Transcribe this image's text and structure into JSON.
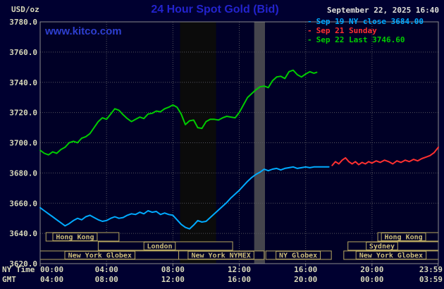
{
  "header": {
    "unit_label": "USD/oz",
    "title": "24 Hour Spot Gold (Bid)",
    "datetime": "September 22, 2025 16:40",
    "site_link": "www.kitco.com"
  },
  "ui": {
    "legend_dash": "-"
  },
  "legend": [
    {
      "label": "Sep 19 NY close 3684.00",
      "color": "#00AAFF"
    },
    {
      "label": "Sep 21 Sunday",
      "color": "#FF3030"
    },
    {
      "label": "Sep 22 Last 3746.60",
      "color": "#00CC00"
    }
  ],
  "axes": {
    "y_ticks": [
      "3780.0",
      "3760.0",
      "3740.0",
      "3720.0",
      "3700.0",
      "3680.0",
      "3660.0",
      "3640.0",
      "3620.0"
    ],
    "x_rows": [
      {
        "label": "NY Time",
        "ticks": [
          "00:00",
          "04:00",
          "08:00",
          "12:00",
          "16:00",
          "20:00",
          "23:59"
        ]
      },
      {
        "label": "GMT",
        "ticks": [
          "04:00",
          "08:00",
          "12:00",
          "16:00",
          "20:00",
          "00:00",
          "03:59"
        ]
      }
    ]
  },
  "sessions": {
    "rows": [
      [
        {
          "label": "Hong Kong",
          "start": 0.35,
          "end": 4.75,
          "label_center": 2.1
        },
        {
          "label": "Hong Kong",
          "start": 20.35,
          "end": 24,
          "label_center": 21.9
        }
      ],
      [
        {
          "label": "London",
          "start": 3.5,
          "end": 11.6,
          "label_center": 7.2
        },
        {
          "label": "Sydney",
          "start": 18.55,
          "end": 24,
          "label_center": 20.6
        }
      ],
      [
        {
          "label": "New York Globex",
          "start": 0,
          "end": 8.35,
          "label_center": 3.6
        },
        {
          "label": "New York NYMEX",
          "start": 8.35,
          "end": 13.5,
          "label_center": 10.9
        },
        {
          "label": "NY Globex",
          "start": 13.6,
          "end": 17.55,
          "label_center": 15.55
        },
        {
          "label": "New York Globex",
          "start": 18.3,
          "end": 24,
          "label_center": 21.15
        }
      ]
    ]
  },
  "colors": {
    "background": "#000030",
    "plot_background": "#000026",
    "grid": "#55555E",
    "border": "#8A8A8A",
    "axis_text": "#D8D8B8",
    "title": "#2323CD",
    "link": "#2E3FD0",
    "datetime_text": "#E0E0D8",
    "session_border": "#B8A860",
    "session_text": "#CCBC78"
  },
  "chart_data": {
    "type": "line",
    "title": "24 Hour Spot Gold (Bid)",
    "xlabel": "Time (NY Time / GMT)",
    "ylabel": "USD/oz",
    "ylim": [
      3620,
      3780
    ],
    "xlim_hours": [
      0,
      24
    ],
    "grid": true,
    "legend_position": "top-right",
    "y_gridlines": [
      3640,
      3660,
      3680,
      3700,
      3720,
      3740,
      3760
    ],
    "x_gridlines_hours": [
      0,
      4,
      8,
      12,
      16,
      20,
      23.983
    ],
    "bands": [
      {
        "from_hour": 8.43,
        "to_hour": 10.6,
        "color": "#0B0B0B"
      },
      {
        "from_hour": 12.9,
        "to_hour": 13.55,
        "color": "#45454D"
      }
    ],
    "series": [
      {
        "name": "Sep 19 NY close 3684.00",
        "color": "#00AAFF",
        "points": [
          [
            0,
            3657
          ],
          [
            0.25,
            3655
          ],
          [
            0.5,
            3653
          ],
          [
            0.75,
            3651
          ],
          [
            1,
            3649
          ],
          [
            1.25,
            3647
          ],
          [
            1.5,
            3645
          ],
          [
            1.75,
            3646.5
          ],
          [
            2,
            3648.5
          ],
          [
            2.25,
            3650
          ],
          [
            2.5,
            3649
          ],
          [
            2.75,
            3651
          ],
          [
            3,
            3652
          ],
          [
            3.25,
            3650.5
          ],
          [
            3.5,
            3649
          ],
          [
            3.75,
            3648
          ],
          [
            4,
            3648.5
          ],
          [
            4.25,
            3650
          ],
          [
            4.5,
            3651
          ],
          [
            4.75,
            3650
          ],
          [
            5,
            3650.5
          ],
          [
            5.25,
            3652
          ],
          [
            5.5,
            3653
          ],
          [
            5.75,
            3652.5
          ],
          [
            6,
            3654
          ],
          [
            6.25,
            3653
          ],
          [
            6.5,
            3655
          ],
          [
            6.75,
            3654
          ],
          [
            7,
            3654.5
          ],
          [
            7.25,
            3652.5
          ],
          [
            7.5,
            3653.5
          ],
          [
            7.75,
            3652.5
          ],
          [
            8,
            3652
          ],
          [
            8.25,
            3649
          ],
          [
            8.5,
            3646
          ],
          [
            8.75,
            3644
          ],
          [
            9,
            3643
          ],
          [
            9.25,
            3645.5
          ],
          [
            9.5,
            3648.5
          ],
          [
            9.75,
            3647.5
          ],
          [
            10,
            3648
          ],
          [
            10.25,
            3650.5
          ],
          [
            10.5,
            3653
          ],
          [
            10.75,
            3655.5
          ],
          [
            11,
            3658
          ],
          [
            11.25,
            3660.5
          ],
          [
            11.5,
            3663.5
          ],
          [
            11.75,
            3666
          ],
          [
            12,
            3668.5
          ],
          [
            12.25,
            3671.5
          ],
          [
            12.5,
            3674.5
          ],
          [
            12.75,
            3677
          ],
          [
            13,
            3679
          ],
          [
            13.25,
            3680.5
          ],
          [
            13.5,
            3682.5
          ],
          [
            13.75,
            3681.5
          ],
          [
            14,
            3682.5
          ],
          [
            14.25,
            3683
          ],
          [
            14.5,
            3682
          ],
          [
            14.75,
            3683
          ],
          [
            15,
            3683.5
          ],
          [
            15.25,
            3684
          ],
          [
            15.5,
            3683
          ],
          [
            15.75,
            3683.5
          ],
          [
            16,
            3684
          ],
          [
            16.25,
            3683.5
          ],
          [
            16.5,
            3684
          ],
          [
            16.75,
            3684
          ],
          [
            17,
            3684
          ],
          [
            17.4,
            3684
          ]
        ]
      },
      {
        "name": "Sep 21 Sunday",
        "color": "#FF3030",
        "points": [
          [
            17.6,
            3685
          ],
          [
            17.8,
            3687.5
          ],
          [
            18,
            3686
          ],
          [
            18.2,
            3688.5
          ],
          [
            18.4,
            3690
          ],
          [
            18.6,
            3687.5
          ],
          [
            18.8,
            3686
          ],
          [
            19,
            3687.5
          ],
          [
            19.2,
            3685.5
          ],
          [
            19.4,
            3687
          ],
          [
            19.6,
            3686
          ],
          [
            19.8,
            3687.5
          ],
          [
            20,
            3686.5
          ],
          [
            20.25,
            3688
          ],
          [
            20.5,
            3687
          ],
          [
            20.75,
            3688.5
          ],
          [
            21,
            3687.5
          ],
          [
            21.25,
            3686
          ],
          [
            21.5,
            3688
          ],
          [
            21.75,
            3687
          ],
          [
            22,
            3688.5
          ],
          [
            22.25,
            3687.5
          ],
          [
            22.5,
            3689
          ],
          [
            22.75,
            3688
          ],
          [
            23,
            3689.5
          ],
          [
            23.25,
            3690.5
          ],
          [
            23.5,
            3691.5
          ],
          [
            23.75,
            3693.5
          ],
          [
            24,
            3697
          ]
        ]
      },
      {
        "name": "Sep 22 Last 3746.60",
        "color": "#00CC00",
        "points": [
          [
            0,
            3695
          ],
          [
            0.25,
            3693
          ],
          [
            0.5,
            3692
          ],
          [
            0.75,
            3694
          ],
          [
            1,
            3693
          ],
          [
            1.25,
            3695.5
          ],
          [
            1.5,
            3697
          ],
          [
            1.75,
            3700
          ],
          [
            2,
            3701
          ],
          [
            2.25,
            3700
          ],
          [
            2.5,
            3703
          ],
          [
            2.75,
            3704
          ],
          [
            3,
            3706
          ],
          [
            3.25,
            3710
          ],
          [
            3.5,
            3714
          ],
          [
            3.75,
            3716.5
          ],
          [
            4,
            3715.5
          ],
          [
            4.25,
            3719
          ],
          [
            4.5,
            3722.5
          ],
          [
            4.75,
            3721.5
          ],
          [
            5,
            3718.5
          ],
          [
            5.25,
            3716
          ],
          [
            5.5,
            3714
          ],
          [
            5.75,
            3715.5
          ],
          [
            6,
            3717
          ],
          [
            6.25,
            3716
          ],
          [
            6.5,
            3719
          ],
          [
            6.75,
            3719.5
          ],
          [
            7,
            3721
          ],
          [
            7.25,
            3720.5
          ],
          [
            7.5,
            3722.5
          ],
          [
            7.75,
            3723.5
          ],
          [
            8,
            3725
          ],
          [
            8.25,
            3723.5
          ],
          [
            8.5,
            3719
          ],
          [
            8.75,
            3712
          ],
          [
            9,
            3714.5
          ],
          [
            9.25,
            3715
          ],
          [
            9.5,
            3710
          ],
          [
            9.75,
            3709.5
          ],
          [
            10,
            3714
          ],
          [
            10.25,
            3715.5
          ],
          [
            10.5,
            3715.5
          ],
          [
            10.75,
            3715
          ],
          [
            11,
            3716.5
          ],
          [
            11.25,
            3717.5
          ],
          [
            11.5,
            3717
          ],
          [
            11.75,
            3716.5
          ],
          [
            12,
            3720
          ],
          [
            12.25,
            3725
          ],
          [
            12.5,
            3730
          ],
          [
            12.75,
            3732.5
          ],
          [
            13,
            3735
          ],
          [
            13.25,
            3737
          ],
          [
            13.5,
            3737.5
          ],
          [
            13.75,
            3736.5
          ],
          [
            14,
            3741
          ],
          [
            14.25,
            3743.5
          ],
          [
            14.5,
            3744
          ],
          [
            14.75,
            3742.5
          ],
          [
            15,
            3747
          ],
          [
            15.25,
            3748
          ],
          [
            15.5,
            3745
          ],
          [
            15.75,
            3743.5
          ],
          [
            16,
            3745.5
          ],
          [
            16.25,
            3747
          ],
          [
            16.5,
            3746
          ],
          [
            16.67,
            3746.6
          ]
        ]
      }
    ]
  }
}
